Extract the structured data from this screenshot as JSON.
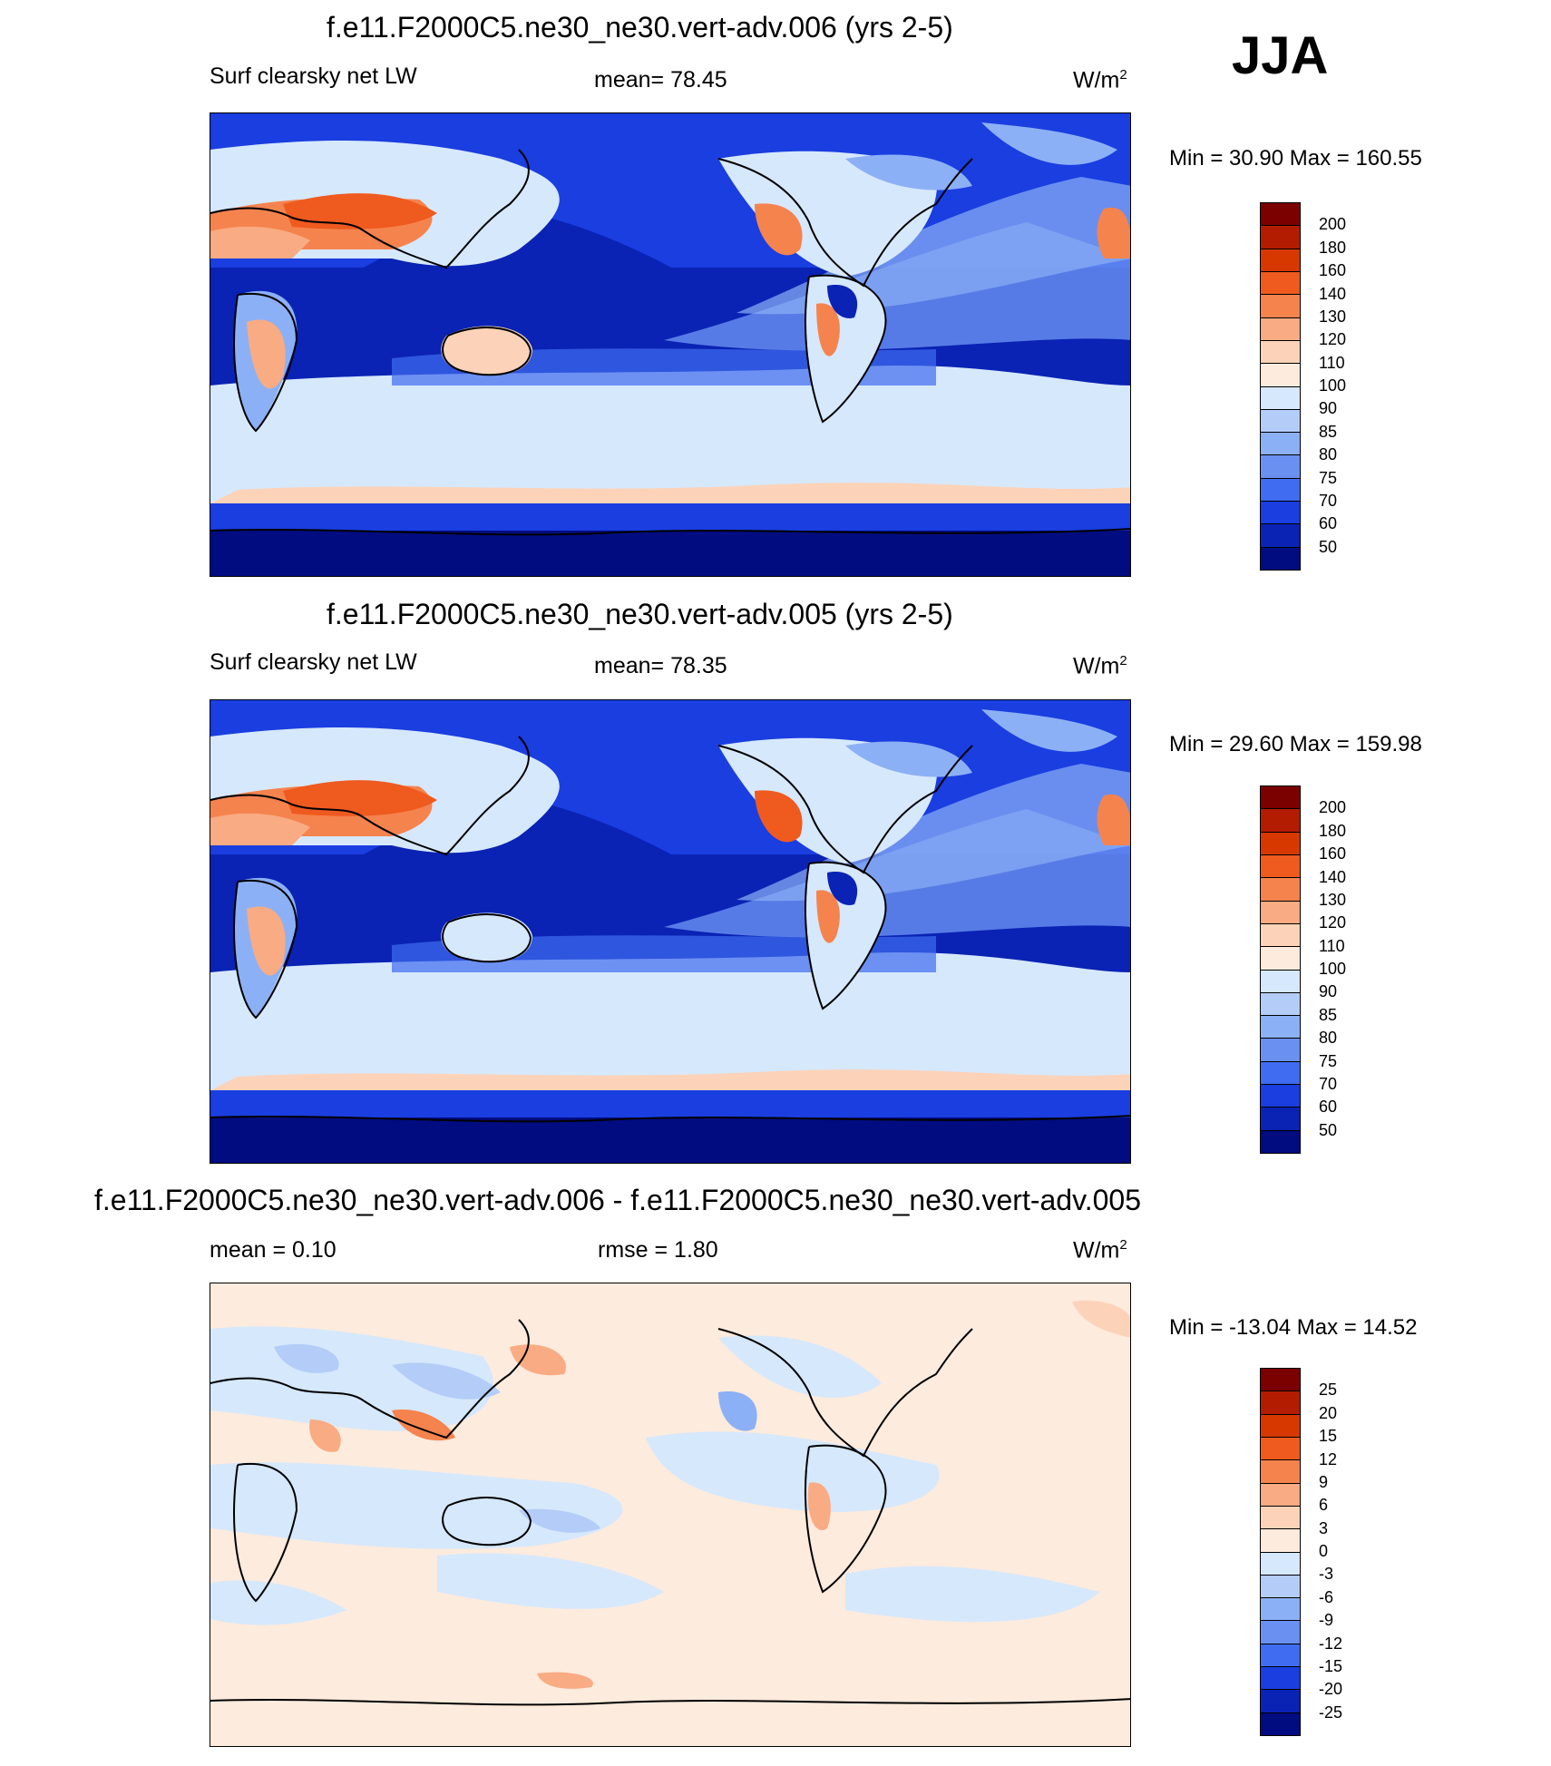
{
  "season": "JJA",
  "panels": [
    {
      "title": "f.e11.F2000C5.ne30_ne30.vert-adv.006 (yrs 2-5)",
      "left_label": "Surf clearsky net LW",
      "center_label": "mean=  78.45",
      "unit_base": "W/m",
      "unit_sup": "2",
      "minmax": "Min =  30.90 Max = 160.55",
      "kind": "field",
      "colorbar_labels": [
        "200",
        "180",
        "160",
        "140",
        "130",
        "120",
        "110",
        "100",
        "90",
        "85",
        "80",
        "75",
        "70",
        "60",
        "50"
      ]
    },
    {
      "title": "f.e11.F2000C5.ne30_ne30.vert-adv.005 (yrs 2-5)",
      "left_label": "Surf clearsky net LW",
      "center_label": "mean=  78.35",
      "unit_base": "W/m",
      "unit_sup": "2",
      "minmax": "Min =  29.60 Max = 159.98",
      "kind": "field",
      "colorbar_labels": [
        "200",
        "180",
        "160",
        "140",
        "130",
        "120",
        "110",
        "100",
        "90",
        "85",
        "80",
        "75",
        "70",
        "60",
        "50"
      ]
    },
    {
      "title": "f.e11.F2000C5.ne30_ne30.vert-adv.006 - f.e11.F2000C5.ne30_ne30.vert-adv.005",
      "left_label": "mean =   0.10",
      "center_label": "rmse =   1.80",
      "unit_base": "W/m",
      "unit_sup": "2",
      "minmax": "Min = -13.04 Max =  14.52",
      "kind": "diff",
      "colorbar_labels": [
        "25",
        "20",
        "15",
        "12",
        "9",
        "6",
        "3",
        "0",
        "-3",
        "-6",
        "-9",
        "-12",
        "-15",
        "-20",
        "-25"
      ]
    }
  ],
  "colors": {
    "field_scale": [
      "#7b0000",
      "#b31c00",
      "#d73800",
      "#ef5a1e",
      "#f5834e",
      "#f9ab83",
      "#fcd3b9",
      "#fdebdd",
      "#d6e8fc",
      "#b3cdf8",
      "#8cb0f5",
      "#6a91f2",
      "#3f6cf0",
      "#1a3ee0",
      "#0a23b4",
      "#000c80"
    ],
    "diff_scale": [
      "#7b0000",
      "#b31c00",
      "#d73800",
      "#ef5a1e",
      "#f5834e",
      "#f9ab83",
      "#fcd3b9",
      "#fdebdd",
      "#d6e8fc",
      "#b3cdf8",
      "#8cb0f5",
      "#6a91f2",
      "#3f6cf0",
      "#1a3ee0",
      "#0a23b4",
      "#000c80"
    ]
  }
}
